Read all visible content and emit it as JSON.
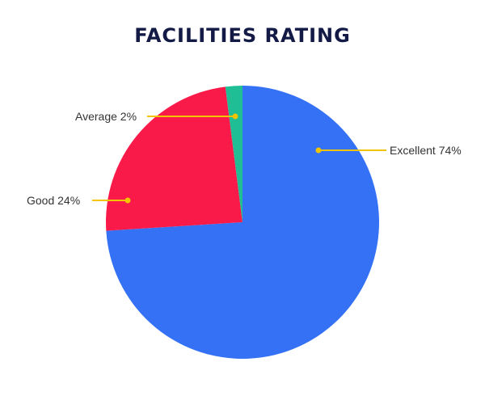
{
  "chart_data": {
    "type": "pie",
    "title": "FACILITIES RATING",
    "slices": [
      {
        "label": "Excellent",
        "value": 74,
        "display": "Excellent 74%",
        "color": "#3471F5"
      },
      {
        "label": "Good",
        "value": 24,
        "display": "Good 24%",
        "color": "#FA1A4A"
      },
      {
        "label": "Average",
        "value": 2,
        "display": "Average 2%",
        "color": "#1FBE94"
      }
    ],
    "start": "12 o'clock",
    "direction": "clockwise",
    "leader_color": "#F2C400"
  }
}
